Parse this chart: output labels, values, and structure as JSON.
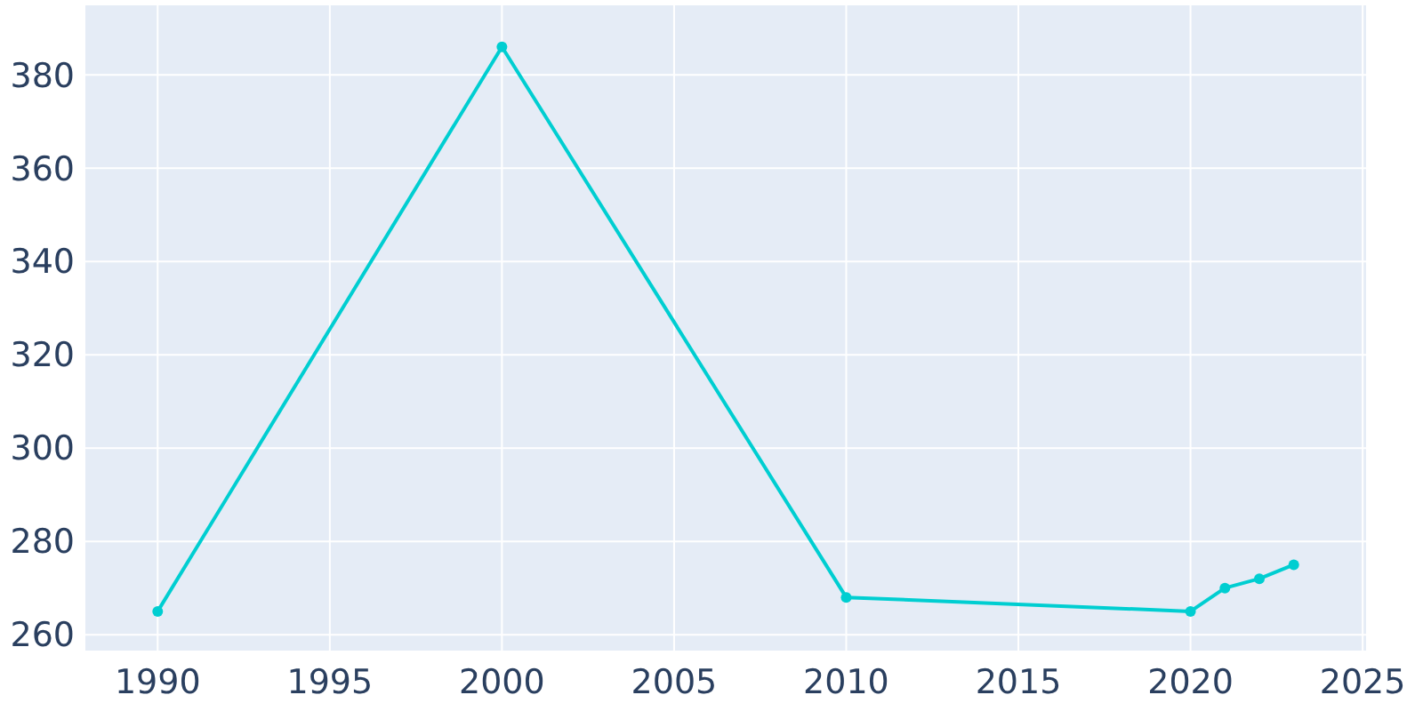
{
  "chart_data": {
    "type": "line",
    "x": [
      1990,
      2000,
      2010,
      2020,
      2021,
      2022,
      2023
    ],
    "series": [
      {
        "color": "#00ced1",
        "values": [
          265,
          386,
          268,
          265,
          270,
          272,
          275
        ]
      }
    ],
    "xlim": [
      1987.9,
      2025.1
    ],
    "xticks": [
      1990,
      1995,
      2000,
      2005,
      2010,
      2015,
      2020,
      2025
    ],
    "ylim": [
      256.6,
      394.9
    ],
    "yticks": [
      260,
      280,
      300,
      320,
      340,
      360,
      380
    ],
    "grid": true,
    "marker": "circle",
    "line_style": "solid"
  }
}
